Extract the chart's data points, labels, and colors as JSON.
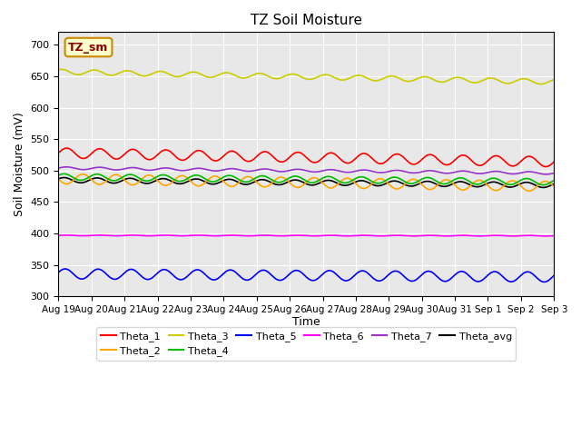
{
  "title": "TZ Soil Moisture",
  "ylabel": "Soil Moisture (mV)",
  "xlabel": "Time",
  "annotation": "TZ_sm",
  "ylim": [
    300,
    720
  ],
  "yticks": [
    300,
    350,
    400,
    450,
    500,
    550,
    600,
    650,
    700
  ],
  "n_points": 336,
  "days": 15,
  "series": {
    "Theta_1": {
      "color": "#ff0000",
      "base": 528,
      "amp": 8,
      "trend": -14,
      "period": 1.0,
      "phase": 0.0
    },
    "Theta_2": {
      "color": "#ffa500",
      "base": 487,
      "amp": 8,
      "trend": -12,
      "period": 1.0,
      "phase": 3.2
    },
    "Theta_3": {
      "color": "#cccc00",
      "base": 657,
      "amp": 4,
      "trend": -16,
      "period": 1.0,
      "phase": 1.0
    },
    "Theta_4": {
      "color": "#00bb00",
      "base": 490,
      "amp": 5,
      "trend": -8,
      "period": 1.0,
      "phase": 0.5
    },
    "Theta_5": {
      "color": "#0000ff",
      "base": 336,
      "amp": 8,
      "trend": -5,
      "period": 1.0,
      "phase": 0.3
    },
    "Theta_6": {
      "color": "#ff00ff",
      "base": 397,
      "amp": 0.5,
      "trend": -0.5,
      "period": 1.0,
      "phase": 0.0
    },
    "Theta_7": {
      "color": "#9933cc",
      "base": 504,
      "amp": 2,
      "trend": -8,
      "period": 1.0,
      "phase": 0.0
    },
    "Theta_avg": {
      "color": "#000000",
      "base": 485,
      "amp": 4,
      "trend": -8,
      "period": 1.0,
      "phase": 0.5
    }
  },
  "legend_row1": [
    "Theta_1",
    "Theta_2",
    "Theta_3",
    "Theta_4",
    "Theta_5",
    "Theta_6"
  ],
  "legend_row2": [
    "Theta_7",
    "Theta_avg"
  ],
  "x_tick_labels": [
    "Aug 19",
    "Aug 20",
    "Aug 21",
    "Aug 22",
    "Aug 23",
    "Aug 24",
    "Aug 25",
    "Aug 26",
    "Aug 27",
    "Aug 28",
    "Aug 29",
    "Aug 30",
    "Aug 31",
    "Sep 1",
    "Sep 2",
    "Sep 3"
  ],
  "plot_bg_color": "#e8e8e8",
  "fig_bg": "#ffffff",
  "grid_color": "#ffffff",
  "annotation_fg": "#8b0000",
  "annotation_bg": "#ffffcc",
  "annotation_edge": "#cc8800"
}
